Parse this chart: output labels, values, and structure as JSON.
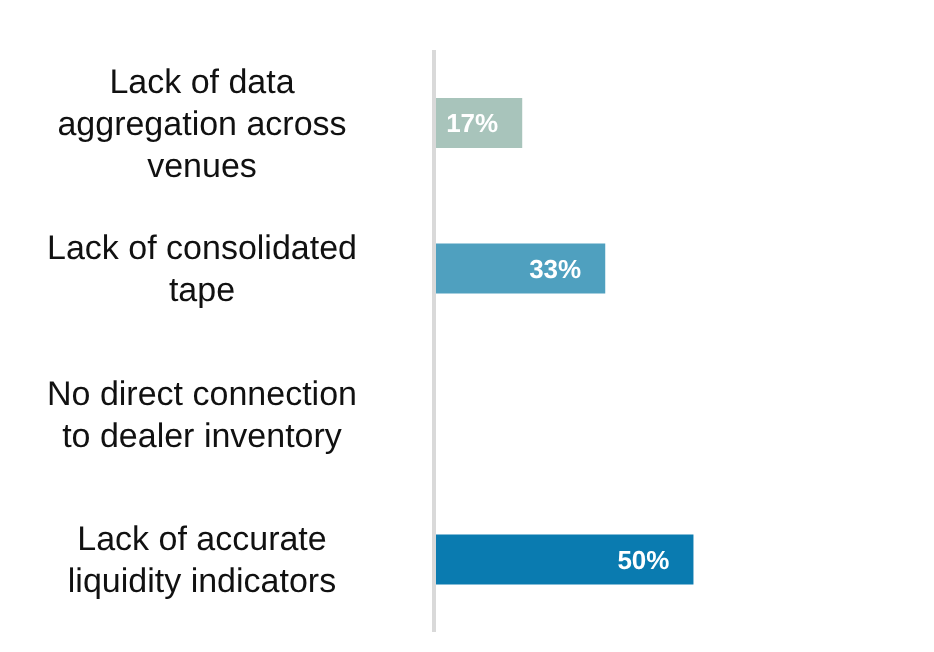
{
  "chart_data": {
    "type": "bar",
    "orientation": "horizontal",
    "categories": [
      "Lack of data aggregation across venues",
      "Lack of consolidated tape",
      "No direct connection to dealer inventory",
      "Lack of accurate liquidity indicators"
    ],
    "values": [
      17,
      33,
      null,
      50
    ],
    "colors": [
      "#a8c4bb",
      "#4fa0bf",
      "#ffffff",
      "#0a7bb0"
    ],
    "value_labels": [
      "17%",
      "33%",
      null,
      "50%"
    ],
    "grid": false,
    "legend": false
  }
}
